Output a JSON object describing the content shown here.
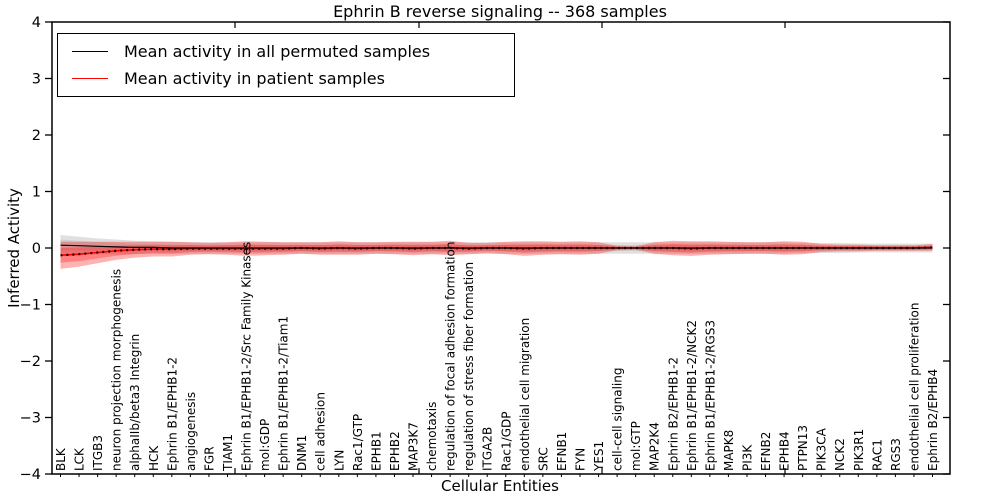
{
  "title": "Ephrin B reverse signaling -- 368 samples",
  "axes": {
    "xlabel": "Cellular Entities",
    "ylabel": "Inferred Activity",
    "ytick_labels": [
      "4",
      "3",
      "2",
      "1",
      "0",
      "−1",
      "−2",
      "−3",
      "−4"
    ],
    "ytick_values": [
      4,
      3,
      2,
      1,
      0,
      -1,
      -2,
      -3,
      -4
    ]
  },
  "legend": {
    "items": [
      {
        "label": "Mean activity in all permuted samples",
        "color": "#000000"
      },
      {
        "label": "Mean activity in patient samples",
        "color": "#ff0000"
      }
    ]
  },
  "colors": {
    "permuted_line": "#000000",
    "patient_line": "#ff0000",
    "permuted_band": "rgba(0,0,0,0.12)",
    "patient_band": "rgba(255,0,0,0.30)",
    "frame": "#000000"
  },
  "chart_data": {
    "type": "line",
    "title": "Ephrin B reverse signaling -- 368 samples",
    "xlabel": "Cellular Entities",
    "ylabel": "Inferred Activity",
    "ylim": [
      -4,
      4
    ],
    "yticks": [
      4,
      3,
      2,
      1,
      0,
      -1,
      -2,
      -3,
      -4
    ],
    "grid": false,
    "legend_position": "upper left",
    "categories": [
      "BLK",
      "LCK",
      "ITGB3",
      "neuron projection morphogenesis",
      "alphaIIb/beta3 Integrin",
      "HCK",
      "Ephrin B1/EPHB1-2",
      "angiogenesis",
      "FGR",
      "TIAM1",
      "Ephrin B1/EPHB1-2/Src Family Kinases",
      "mol:GDP",
      "Ephrin B1/EPHB1-2/Tiam1",
      "DNM1",
      "cell adhesion",
      "LYN",
      "Rac1/GTP",
      "EPHB1",
      "EPHB2",
      "MAP3K7",
      "chemotaxis",
      "regulation of focal adhesion formation",
      "regulation of stress fiber formation",
      "ITGA2B",
      "Rac1/GDP",
      "endothelial cell migration",
      "SRC",
      "EFNB1",
      "FYN",
      "YES1",
      "cell-cell signaling",
      "mol:GTP",
      "MAP2K4",
      "Ephrin B2/EPHB1-2",
      "Ephrin B1/EPHB1-2/NCK2",
      "Ephrin B1/EPHB1-2/RGS3",
      "MAPK8",
      "PI3K",
      "EFNB2",
      "EPHB4",
      "PTPN13",
      "PIK3CA",
      "NCK2",
      "PIK3R1",
      "RAC1",
      "RGS3",
      "endothelial cell proliferation",
      "Ephrin B2/EPHB4"
    ],
    "series": [
      {
        "name": "Mean activity in all permuted samples",
        "color": "#000000",
        "values": [
          0.05,
          0.04,
          0.03,
          0.02,
          0.01,
          0.01,
          0,
          0,
          0,
          0,
          0,
          0,
          0,
          0,
          0,
          0,
          0,
          0,
          0,
          0,
          0,
          0,
          0,
          0,
          0,
          0,
          0,
          0,
          0,
          0,
          0,
          0,
          0,
          0,
          0,
          0,
          0,
          0,
          0,
          0,
          0,
          0,
          0,
          0,
          0,
          0,
          0,
          0
        ],
        "band_std": [
          0.18,
          0.16,
          0.14,
          0.13,
          0.12,
          0.11,
          0.11,
          0.1,
          0.1,
          0.1,
          0.1,
          0.1,
          0.1,
          0.1,
          0.1,
          0.1,
          0.1,
          0.1,
          0.1,
          0.1,
          0.1,
          0.1,
          0.1,
          0.1,
          0.1,
          0.1,
          0.1,
          0.1,
          0.1,
          0.1,
          0.1,
          0.1,
          0.1,
          0.1,
          0.1,
          0.1,
          0.1,
          0.1,
          0.1,
          0.1,
          0.09,
          0.09,
          0.09,
          0.08,
          0.08,
          0.08,
          0.08,
          0.08
        ]
      },
      {
        "name": "Mean activity in patient samples",
        "color": "#ff0000",
        "values": [
          -0.13,
          -0.11,
          -0.08,
          -0.05,
          -0.03,
          -0.02,
          -0.02,
          -0.01,
          -0.01,
          -0.01,
          -0.01,
          -0.01,
          -0.01,
          0,
          -0.01,
          0,
          -0.01,
          0,
          0,
          -0.01,
          0,
          0,
          -0.01,
          0,
          0,
          -0.01,
          0,
          0,
          0,
          0,
          0,
          0,
          0,
          0,
          -0.01,
          0,
          0,
          0,
          0,
          0,
          0,
          0,
          0,
          0,
          0,
          0,
          0,
          0.01
        ],
        "band_std": [
          0.24,
          0.22,
          0.19,
          0.16,
          0.14,
          0.13,
          0.13,
          0.11,
          0.1,
          0.11,
          0.13,
          0.12,
          0.11,
          0.1,
          0.11,
          0.12,
          0.11,
          0.1,
          0.11,
          0.12,
          0.11,
          0.13,
          0.1,
          0.09,
          0.11,
          0.13,
          0.12,
          0.11,
          0.12,
          0.1,
          0.04,
          0.03,
          0.1,
          0.13,
          0.13,
          0.12,
          0.11,
          0.1,
          0.1,
          0.12,
          0.11,
          0.07,
          0.06,
          0.06,
          0.05,
          0.05,
          0.05,
          0.06
        ]
      }
    ]
  }
}
